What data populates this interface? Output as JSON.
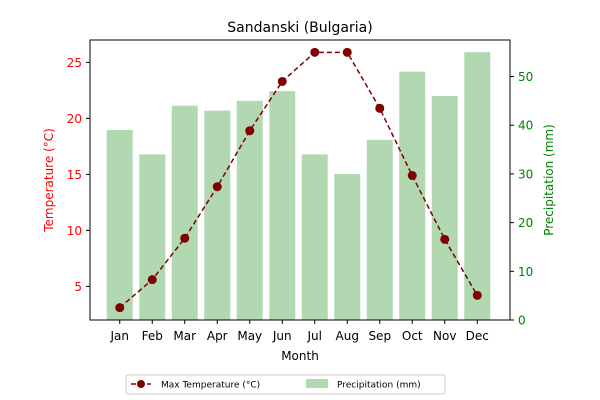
{
  "chart_data": {
    "type": "bar+line",
    "title": "Sandanski (Bulgaria)",
    "xlabel": "Month",
    "categories": [
      "Jan",
      "Feb",
      "Mar",
      "Apr",
      "May",
      "Jun",
      "Jul",
      "Aug",
      "Sep",
      "Oct",
      "Nov",
      "Dec"
    ],
    "left_axis": {
      "label": "Temperature (°C)",
      "ylim": [
        2,
        27
      ],
      "ticks": [
        5,
        10,
        15,
        20,
        25
      ],
      "color": "#ff0000"
    },
    "right_axis": {
      "label": "Precipitation (mm)",
      "ylim": [
        0,
        57.5
      ],
      "ticks": [
        0,
        10,
        20,
        30,
        40,
        50
      ],
      "color": "#008000"
    },
    "series": [
      {
        "name": "Max Temperature (°C)",
        "type": "line",
        "axis": "left",
        "color": "#800000",
        "line_style": "dashed",
        "marker": "circle",
        "values": [
          3.1,
          5.6,
          9.3,
          13.9,
          18.9,
          23.3,
          25.9,
          25.9,
          20.9,
          14.9,
          9.2,
          4.2
        ]
      },
      {
        "name": "Precipitation (mm)",
        "type": "bar",
        "axis": "right",
        "color": "#b2d8b2",
        "values": [
          39,
          34,
          44,
          43,
          45,
          47,
          34,
          30,
          37,
          51,
          46,
          55
        ]
      }
    ],
    "grid": false,
    "legend_position": "bottom-center"
  }
}
